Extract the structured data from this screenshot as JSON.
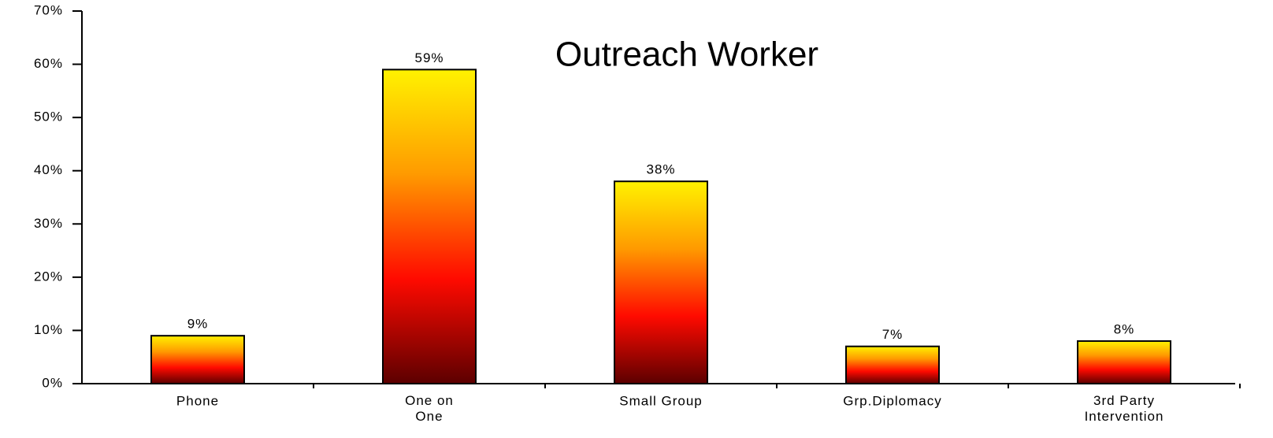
{
  "chart_data": {
    "type": "bar",
    "title": "Outreach Worker",
    "categories": [
      "Phone",
      "One on One",
      "Small Group",
      "Grp.Diplomacy",
      "3rd Party Intervention"
    ],
    "values": [
      9,
      59,
      38,
      7,
      8
    ],
    "value_labels": [
      "9%",
      "59%",
      "38%",
      "7%",
      "8%"
    ],
    "gradient": [
      "#fff200",
      "#ff9a00",
      "#ff0a00",
      "#5c0000"
    ],
    "ylim": [
      0,
      70
    ],
    "yticks": [
      {
        "value": 0,
        "label": "0%"
      },
      {
        "value": 10,
        "label": "10%"
      },
      {
        "value": 20,
        "label": "20%"
      },
      {
        "value": 30,
        "label": "30%"
      },
      {
        "value": 40,
        "label": "40%"
      },
      {
        "value": 50,
        "label": "50%"
      },
      {
        "value": 60,
        "label": "60%"
      },
      {
        "value": 70,
        "label": "70%"
      }
    ],
    "grid": false
  }
}
